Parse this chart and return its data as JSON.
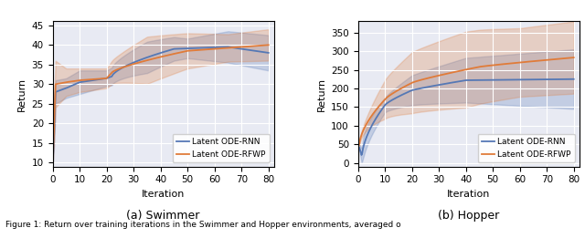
{
  "swimmer": {
    "xlim": [
      0,
      82
    ],
    "ylim": [
      9,
      46
    ],
    "yticks": [
      10,
      15,
      20,
      25,
      30,
      35,
      40,
      45
    ],
    "xticks": [
      0,
      10,
      20,
      30,
      40,
      50,
      60,
      70,
      80
    ],
    "xlabel": "Iteration",
    "ylabel": "Return",
    "subtitle": "(a) Swimmer",
    "rnn_color": "#5578b5",
    "rfwp_color": "#e07b39",
    "rnn_fill_alpha": 0.25,
    "rfwp_fill_alpha": 0.25,
    "legend_labels": [
      "Latent ODE-RNN",
      "Latent ODE-RFWP"
    ]
  },
  "hopper": {
    "xlim": [
      0,
      82
    ],
    "ylim": [
      -10,
      380
    ],
    "yticks": [
      0,
      50,
      100,
      150,
      200,
      250,
      300,
      350
    ],
    "xticks": [
      0,
      10,
      20,
      30,
      40,
      50,
      60,
      70,
      80
    ],
    "xlabel": "Iteration",
    "ylabel": "Return",
    "subtitle": "(b) Hopper",
    "rnn_color": "#5578b5",
    "rfwp_color": "#e07b39",
    "rnn_fill_alpha": 0.25,
    "rfwp_fill_alpha": 0.25,
    "legend_labels": [
      "Latent ODE-RNN",
      "Latent ODE-RFWP"
    ]
  },
  "bg_color": "#e8eaf3",
  "fig_bg": "#ffffff",
  "caption": "Figure 1: Return over training iterations in the Swimmer and Hopper environments, averaged o"
}
